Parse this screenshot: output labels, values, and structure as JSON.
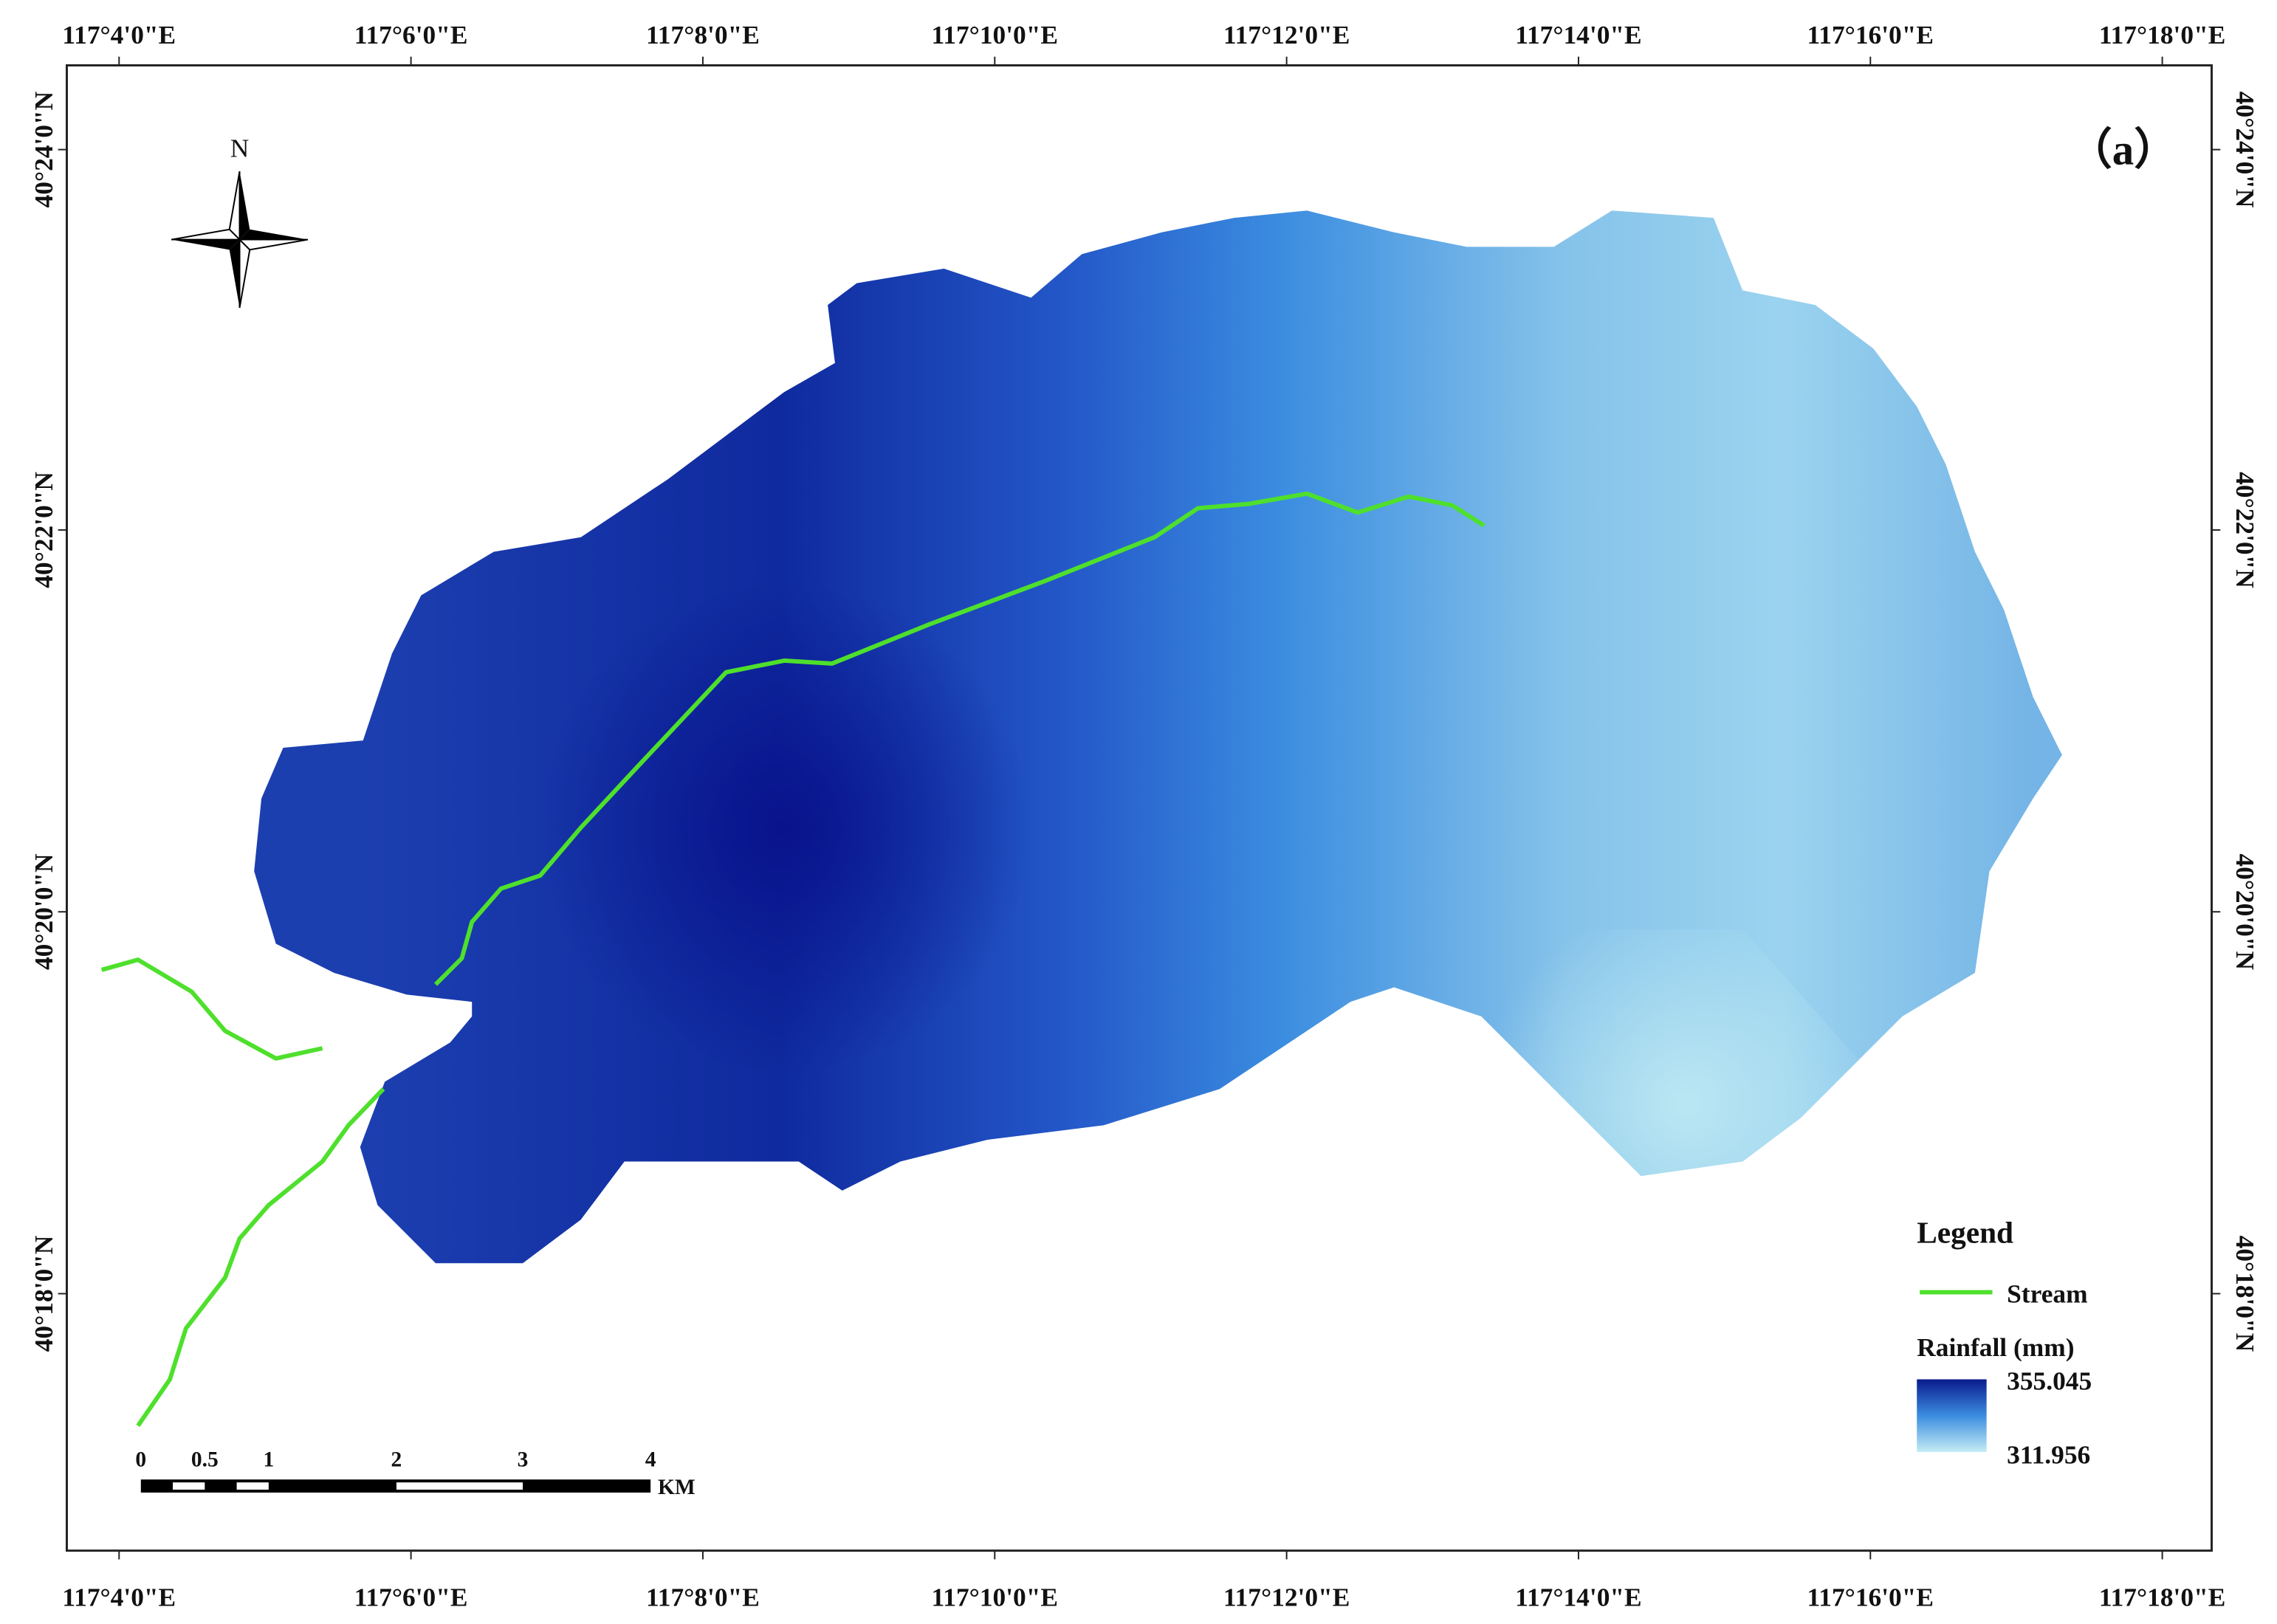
{
  "map": {
    "panel_label": "（a）",
    "north_label": "N",
    "x_axis_labels": [
      "117°4'0\"E",
      "117°6'0\"E",
      "117°8'0\"E",
      "117°10'0\"E",
      "117°12'0\"E",
      "117°14'0\"E",
      "117°16'0\"E",
      "117°18'0\"E"
    ],
    "y_axis_labels": [
      "40°24'0\"N",
      "40°22'0\"N",
      "40°20'0\"N",
      "40°18'0\"N"
    ],
    "legend": {
      "title": "Legend",
      "stream": "Stream",
      "rainfall_title": "Rainfall (mm)",
      "max": "355.045",
      "min": "311.956"
    },
    "scale_bar": {
      "labels": [
        "0",
        "0.5",
        "1",
        "2",
        "3",
        "4"
      ],
      "unit": "KM"
    }
  }
}
